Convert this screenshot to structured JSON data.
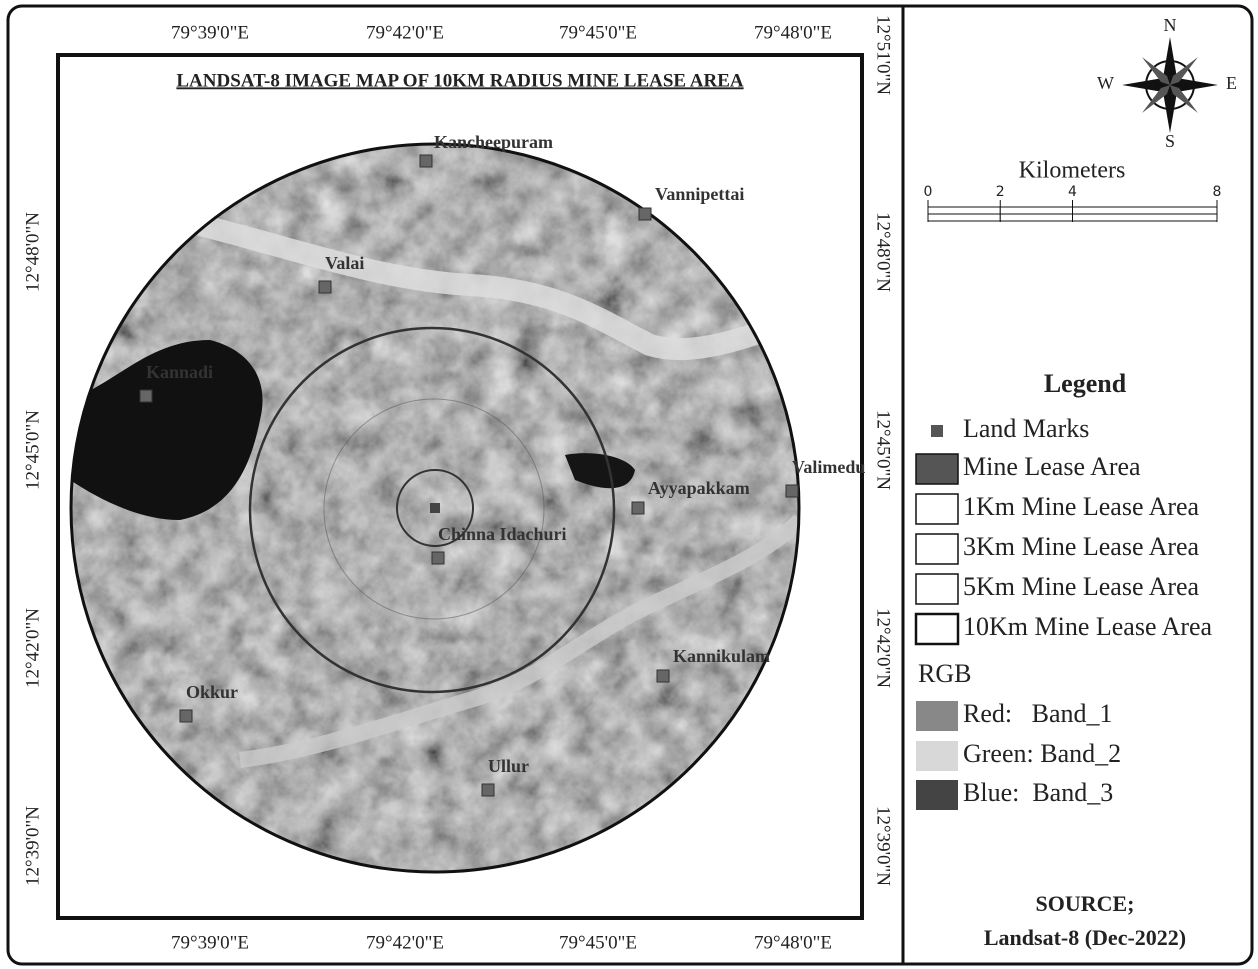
{
  "title": "LANDSAT-8 IMAGE MAP OF 10KM RADIUS MINE LEASE AREA",
  "longitude_labels": [
    "79°39'0\"E",
    "79°42'0\"E",
    "79°45'0\"E",
    "79°48'0\"E"
  ],
  "latitude_labels": [
    "12°51'0\"N",
    "12°48'0\"N",
    "12°45'0\"N",
    "12°42'0\"N",
    "12°39'0\"N"
  ],
  "landmarks": [
    "Kancheepuram",
    "Vannipettai",
    "Valai",
    "Kannadi",
    "Valimedu",
    "Ayyapakkam",
    "Chinna Idachuri",
    "Kannikulam",
    "Okkur",
    "Ullur"
  ],
  "compass": {
    "north": "N",
    "east": "E",
    "south": "S",
    "west": "W"
  },
  "scale_bar": {
    "title": "Kilometers",
    "ticks": [
      0,
      2,
      4,
      8
    ]
  },
  "legend": {
    "title": "Legend",
    "items": [
      "Land Marks",
      "Mine Lease Area",
      "1Km Mine Lease Area",
      "3Km Mine Lease Area",
      "5Km Mine Lease Area",
      "10Km Mine Lease Area"
    ],
    "rgb_title": "RGB",
    "rgb_items": [
      "Red:   Band_1",
      "Green: Band_2",
      "Blue:  Band_3"
    ]
  },
  "source": {
    "title": "SOURCE;",
    "text": "Landsat-8 (Dec-2022)"
  }
}
